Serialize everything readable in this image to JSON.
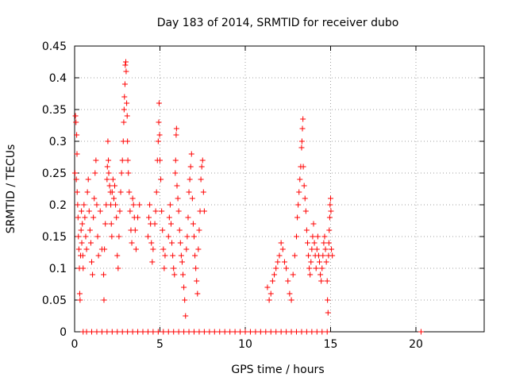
{
  "chart_data": {
    "type": "scatter",
    "title": "Day 183 of 2014, SRMTID for receiver dubo",
    "xlabel": "GPS time / hours",
    "ylabel": "SRMTID / TECUs",
    "xlim": [
      0,
      24
    ],
    "ylim": [
      0,
      0.45
    ],
    "xticks": [
      0,
      5,
      10,
      15,
      20
    ],
    "xtick_labels": [
      "0",
      "5",
      "10",
      "15",
      "20"
    ],
    "yticks": [
      0,
      0.05,
      0.1,
      0.15,
      0.2,
      0.25,
      0.3,
      0.35,
      0.4,
      0.45
    ],
    "ytick_labels": [
      "0",
      "0.05",
      "0.1",
      "0.15",
      "0.2",
      "0.25",
      "0.3",
      "0.35",
      "0.4",
      "0.45"
    ],
    "grid": true,
    "marker": "+",
    "color": "#ff0000",
    "series": [
      {
        "name": "SRMTID",
        "points": [
          [
            0.02,
            0.25
          ],
          [
            0.05,
            0.34
          ],
          [
            0.08,
            0.33
          ],
          [
            0.1,
            0.24
          ],
          [
            0.12,
            0.31
          ],
          [
            0.14,
            0.28
          ],
          [
            0.15,
            0.22
          ],
          [
            0.18,
            0.2
          ],
          [
            0.2,
            0.18
          ],
          [
            0.22,
            0.15
          ],
          [
            0.25,
            0.13
          ],
          [
            0.28,
            0.1
          ],
          [
            0.3,
            0.06
          ],
          [
            0.32,
            0.05
          ],
          [
            0.35,
            0.12
          ],
          [
            0.38,
            0.16
          ],
          [
            0.4,
            0.19
          ],
          [
            0.42,
            0.14
          ],
          [
            0.45,
            0.17
          ],
          [
            0.48,
            0.12
          ],
          [
            0.5,
            0.1
          ],
          [
            0.55,
            0.2
          ],
          [
            0.6,
            0.18
          ],
          [
            0.65,
            0.15
          ],
          [
            0.7,
            0.13
          ],
          [
            0.75,
            0.22
          ],
          [
            0.8,
            0.24
          ],
          [
            0.85,
            0.19
          ],
          [
            0.9,
            0.16
          ],
          [
            0.95,
            0.14
          ],
          [
            1.0,
            0.11
          ],
          [
            1.05,
            0.09
          ],
          [
            1.1,
            0.18
          ],
          [
            1.15,
            0.21
          ],
          [
            1.2,
            0.25
          ],
          [
            1.25,
            0.27
          ],
          [
            1.3,
            0.2
          ],
          [
            1.35,
            0.15
          ],
          [
            1.4,
            0.12
          ],
          [
            1.5,
            0.19
          ],
          [
            1.6,
            0.13
          ],
          [
            1.7,
            0.09
          ],
          [
            1.72,
            0.05
          ],
          [
            1.75,
            0.13
          ],
          [
            1.8,
            0.17
          ],
          [
            1.85,
            0.2
          ],
          [
            1.9,
            0.24
          ],
          [
            1.92,
            0.26
          ],
          [
            1.95,
            0.3
          ],
          [
            1.98,
            0.27
          ],
          [
            2.0,
            0.25
          ],
          [
            2.05,
            0.23
          ],
          [
            2.1,
            0.22
          ],
          [
            2.12,
            0.2
          ],
          [
            2.15,
            0.17
          ],
          [
            2.18,
            0.15
          ],
          [
            2.2,
            0.22
          ],
          [
            2.25,
            0.24
          ],
          [
            2.3,
            0.21
          ],
          [
            2.35,
            0.23
          ],
          [
            2.4,
            0.2
          ],
          [
            2.45,
            0.18
          ],
          [
            2.5,
            0.12
          ],
          [
            2.55,
            0.1
          ],
          [
            2.6,
            0.15
          ],
          [
            2.65,
            0.19
          ],
          [
            2.7,
            0.22
          ],
          [
            2.75,
            0.25
          ],
          [
            2.8,
            0.27
          ],
          [
            2.85,
            0.3
          ],
          [
            2.88,
            0.33
          ],
          [
            2.9,
            0.35
          ],
          [
            2.92,
            0.37
          ],
          [
            2.95,
            0.39
          ],
          [
            2.97,
            0.42
          ],
          [
            3.0,
            0.425
          ],
          [
            3.02,
            0.41
          ],
          [
            3.05,
            0.36
          ],
          [
            3.08,
            0.34
          ],
          [
            3.1,
            0.3
          ],
          [
            3.12,
            0.27
          ],
          [
            3.15,
            0.25
          ],
          [
            3.2,
            0.22
          ],
          [
            3.25,
            0.19
          ],
          [
            3.3,
            0.16
          ],
          [
            3.35,
            0.14
          ],
          [
            3.4,
            0.21
          ],
          [
            3.45,
            0.2
          ],
          [
            3.5,
            0.18
          ],
          [
            3.55,
            0.16
          ],
          [
            3.6,
            0.13
          ],
          [
            3.7,
            0.18
          ],
          [
            3.8,
            0.2
          ],
          [
            4.3,
            0.15
          ],
          [
            4.35,
            0.18
          ],
          [
            4.4,
            0.2
          ],
          [
            4.45,
            0.17
          ],
          [
            4.5,
            0.14
          ],
          [
            4.55,
            0.11
          ],
          [
            4.6,
            0.13
          ],
          [
            4.7,
            0.17
          ],
          [
            4.75,
            0.19
          ],
          [
            4.8,
            0.22
          ],
          [
            4.85,
            0.27
          ],
          [
            4.9,
            0.3
          ],
          [
            4.93,
            0.33
          ],
          [
            4.95,
            0.36
          ],
          [
            4.98,
            0.31
          ],
          [
            5.0,
            0.27
          ],
          [
            5.05,
            0.24
          ],
          [
            5.1,
            0.19
          ],
          [
            5.15,
            0.16
          ],
          [
            5.2,
            0.13
          ],
          [
            5.25,
            0.1
          ],
          [
            5.3,
            0.12
          ],
          [
            5.5,
            0.15
          ],
          [
            5.55,
            0.18
          ],
          [
            5.6,
            0.2
          ],
          [
            5.65,
            0.17
          ],
          [
            5.7,
            0.14
          ],
          [
            5.75,
            0.12
          ],
          [
            5.8,
            0.1
          ],
          [
            5.85,
            0.09
          ],
          [
            5.9,
            0.25
          ],
          [
            5.92,
            0.27
          ],
          [
            5.95,
            0.31
          ],
          [
            5.97,
            0.32
          ],
          [
            6.0,
            0.23
          ],
          [
            6.05,
            0.21
          ],
          [
            6.1,
            0.19
          ],
          [
            6.15,
            0.16
          ],
          [
            6.2,
            0.14
          ],
          [
            6.25,
            0.12
          ],
          [
            6.3,
            0.11
          ],
          [
            6.35,
            0.09
          ],
          [
            6.4,
            0.07
          ],
          [
            6.45,
            0.05
          ],
          [
            6.5,
            0.025
          ],
          [
            6.55,
            0.13
          ],
          [
            6.6,
            0.15
          ],
          [
            6.65,
            0.18
          ],
          [
            6.7,
            0.22
          ],
          [
            6.75,
            0.24
          ],
          [
            6.8,
            0.26
          ],
          [
            6.85,
            0.28
          ],
          [
            6.9,
            0.21
          ],
          [
            6.95,
            0.17
          ],
          [
            7.0,
            0.15
          ],
          [
            7.05,
            0.12
          ],
          [
            7.1,
            0.1
          ],
          [
            7.15,
            0.08
          ],
          [
            7.2,
            0.06
          ],
          [
            7.25,
            0.13
          ],
          [
            7.3,
            0.16
          ],
          [
            7.35,
            0.19
          ],
          [
            7.4,
            0.24
          ],
          [
            7.45,
            0.26
          ],
          [
            7.5,
            0.27
          ],
          [
            7.55,
            0.22
          ],
          [
            7.6,
            0.19
          ],
          [
            11.3,
            0.07
          ],
          [
            11.4,
            0.05
          ],
          [
            11.5,
            0.06
          ],
          [
            11.6,
            0.08
          ],
          [
            11.7,
            0.09
          ],
          [
            11.8,
            0.1
          ],
          [
            11.9,
            0.11
          ],
          [
            12.0,
            0.12
          ],
          [
            12.1,
            0.14
          ],
          [
            12.2,
            0.13
          ],
          [
            12.3,
            0.11
          ],
          [
            12.4,
            0.1
          ],
          [
            12.5,
            0.08
          ],
          [
            12.6,
            0.06
          ],
          [
            12.7,
            0.05
          ],
          [
            12.8,
            0.09
          ],
          [
            12.9,
            0.12
          ],
          [
            13.0,
            0.15
          ],
          [
            13.05,
            0.18
          ],
          [
            13.1,
            0.2
          ],
          [
            13.15,
            0.22
          ],
          [
            13.2,
            0.24
          ],
          [
            13.25,
            0.26
          ],
          [
            13.3,
            0.29
          ],
          [
            13.32,
            0.3
          ],
          [
            13.35,
            0.32
          ],
          [
            13.38,
            0.335
          ],
          [
            13.4,
            0.26
          ],
          [
            13.45,
            0.23
          ],
          [
            13.5,
            0.21
          ],
          [
            13.55,
            0.19
          ],
          [
            13.6,
            0.16
          ],
          [
            13.65,
            0.14
          ],
          [
            13.7,
            0.12
          ],
          [
            13.75,
            0.1
          ],
          [
            13.8,
            0.09
          ],
          [
            13.85,
            0.11
          ],
          [
            13.9,
            0.13
          ],
          [
            13.95,
            0.15
          ],
          [
            14.0,
            0.17
          ],
          [
            14.05,
            0.14
          ],
          [
            14.1,
            0.12
          ],
          [
            14.15,
            0.1
          ],
          [
            14.2,
            0.13
          ],
          [
            14.25,
            0.15
          ],
          [
            14.3,
            0.12
          ],
          [
            14.35,
            0.11
          ],
          [
            14.4,
            0.09
          ],
          [
            14.45,
            0.08
          ],
          [
            14.5,
            0.1
          ],
          [
            14.55,
            0.12
          ],
          [
            14.6,
            0.14
          ],
          [
            14.65,
            0.15
          ],
          [
            14.7,
            0.13
          ],
          [
            14.75,
            0.11
          ],
          [
            14.8,
            0.08
          ],
          [
            14.82,
            0.05
          ],
          [
            14.85,
            0.03
          ],
          [
            14.88,
            0.12
          ],
          [
            14.9,
            0.14
          ],
          [
            14.92,
            0.16
          ],
          [
            14.95,
            0.18
          ],
          [
            14.97,
            0.2
          ],
          [
            15.0,
            0.21
          ],
          [
            15.02,
            0.19
          ],
          [
            15.05,
            0.13
          ],
          [
            15.1,
            0.12
          ],
          [
            0.5,
            0
          ],
          [
            0.7,
            0
          ],
          [
            1.0,
            0
          ],
          [
            1.3,
            0
          ],
          [
            1.6,
            0
          ],
          [
            1.9,
            0
          ],
          [
            2.2,
            0
          ],
          [
            2.5,
            0
          ],
          [
            2.8,
            0
          ],
          [
            3.1,
            0
          ],
          [
            3.4,
            0
          ],
          [
            3.7,
            0
          ],
          [
            4.0,
            0
          ],
          [
            4.3,
            0
          ],
          [
            4.6,
            0
          ],
          [
            4.9,
            0
          ],
          [
            5.2,
            0
          ],
          [
            5.5,
            0
          ],
          [
            5.8,
            0
          ],
          [
            6.1,
            0
          ],
          [
            6.4,
            0
          ],
          [
            6.7,
            0
          ],
          [
            7.0,
            0
          ],
          [
            7.3,
            0
          ],
          [
            7.6,
            0
          ],
          [
            7.9,
            0
          ],
          [
            8.2,
            0
          ],
          [
            8.5,
            0
          ],
          [
            8.8,
            0
          ],
          [
            9.1,
            0
          ],
          [
            9.4,
            0
          ],
          [
            9.7,
            0
          ],
          [
            10.0,
            0
          ],
          [
            10.3,
            0
          ],
          [
            10.6,
            0
          ],
          [
            10.9,
            0
          ],
          [
            11.2,
            0
          ],
          [
            11.5,
            0
          ],
          [
            11.8,
            0
          ],
          [
            12.1,
            0
          ],
          [
            12.4,
            0
          ],
          [
            12.7,
            0
          ],
          [
            13.0,
            0
          ],
          [
            13.3,
            0
          ],
          [
            13.6,
            0
          ],
          [
            13.9,
            0
          ],
          [
            14.2,
            0
          ],
          [
            14.5,
            0
          ],
          [
            14.8,
            0
          ],
          [
            20.3,
            0
          ]
        ]
      }
    ]
  }
}
